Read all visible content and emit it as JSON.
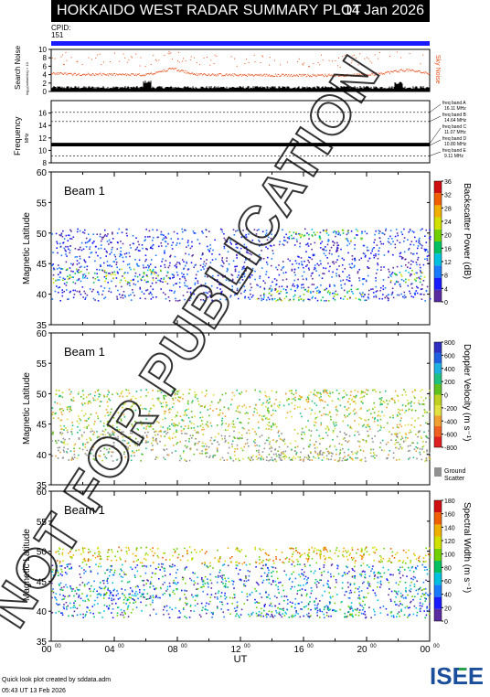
{
  "header": {
    "title": "HOKKAIDO WEST RADAR SUMMARY PLOT",
    "date": "14 Jan 2026"
  },
  "cpid": {
    "label": "CPID:",
    "value": "151"
  },
  "footer": {
    "line1": "Quick look plot created by sddata.adm",
    "line2": "05:43 UT 13 Feb 2026"
  },
  "logo": {
    "text": "ISEE"
  },
  "watermark": "NOT FOR PUBLICATION",
  "x_axis": {
    "label": "UT",
    "ticks": [
      "00",
      "04",
      "08",
      "12",
      "16",
      "20",
      "00"
    ],
    "tick_sup": "00",
    "range": [
      0,
      24
    ]
  },
  "noise_panel": {
    "ylabel": "Search Noise",
    "ylabel2": "log₁₀(noise/cts) × 10",
    "ylim": [
      0,
      10
    ],
    "yticks": [
      "0",
      "2",
      "4",
      "6",
      "8",
      "10"
    ],
    "right_label": "Sky Noise",
    "colors": {
      "search": "#000000",
      "sky": "#e8501c"
    }
  },
  "freq_panel": {
    "ylabel": "Frequency",
    "ylabel_unit": "MHz",
    "ylim": [
      8,
      18
    ],
    "yticks": [
      "8",
      "10",
      "12",
      "14",
      "16"
    ],
    "bands": [
      {
        "name": "freq band A",
        "freq": "16.11 MHz",
        "value": 16.11
      },
      {
        "name": "freq band B",
        "freq": "14.64 MHz",
        "value": 14.64
      },
      {
        "name": "freq band C",
        "freq": "11.07 MHz",
        "value": 11.07
      },
      {
        "name": "freq band D",
        "freq": "10.80 MHz",
        "value": 10.8
      },
      {
        "name": "freq band E",
        "freq": "9.11 MHz",
        "value": 9.11
      }
    ]
  },
  "panels": [
    {
      "beam": "Beam  1",
      "ylabel": "Magnetic Latitude",
      "ylim": [
        35,
        60
      ],
      "yticks": [
        "35",
        "40",
        "45",
        "50",
        "55",
        "60"
      ],
      "cbar_label": "Backscatter Power (dB)",
      "cbar_ticks": [
        "0",
        "4",
        "8",
        "12",
        "16",
        "20",
        "24",
        "28",
        "32",
        "36"
      ],
      "cbar_range": [
        0,
        36
      ],
      "kind": "power"
    },
    {
      "beam": "Beam  1",
      "ylabel": "Magnetic Latitude",
      "ylim": [
        35,
        60
      ],
      "yticks": [
        "35",
        "40",
        "45",
        "50",
        "55",
        "60"
      ],
      "cbar_label": "Doppler Velocity (m s⁻¹)",
      "cbar_ticks": [
        "800",
        "600",
        "400",
        "200",
        "0",
        "-200",
        "-400",
        "-600",
        "-800"
      ],
      "cbar_range": [
        -800,
        800
      ],
      "kind": "velocity",
      "gs_label": "Ground",
      "gs_label2": "Scatter"
    },
    {
      "beam": "Beam  1",
      "ylabel": "Magnetic Latitude",
      "ylim": [
        35,
        60
      ],
      "yticks": [
        "35",
        "40",
        "45",
        "50",
        "55",
        "60"
      ],
      "cbar_label": "Spectral Width (m s⁻¹)",
      "cbar_ticks": [
        "0",
        "20",
        "40",
        "60",
        "80",
        "100",
        "120",
        "140",
        "160",
        "180"
      ],
      "cbar_range": [
        0,
        180
      ],
      "kind": "width"
    }
  ],
  "chart_data": {
    "type": "heatmap",
    "title": "HOKKAIDO WEST RADAR SUMMARY PLOT",
    "xlabel": "UT",
    "xlim": [
      0,
      24
    ],
    "search_noise_level": [
      {
        "t": 0,
        "v": 4.3
      },
      {
        "t": 4,
        "v": 4.1
      },
      {
        "t": 6,
        "v": 4.0
      },
      {
        "t": 7.7,
        "v": 5.6
      },
      {
        "t": 9,
        "v": 4.2
      },
      {
        "t": 12,
        "v": 4.0
      },
      {
        "t": 16,
        "v": 3.9
      },
      {
        "t": 20,
        "v": 4.0
      },
      {
        "t": 22.5,
        "v": 5.2
      },
      {
        "t": 24,
        "v": 4.4
      }
    ],
    "echo_regions": [
      {
        "panel": "all",
        "t0": 0,
        "t1": 24,
        "lat0": 39,
        "lat1": 50.8,
        "note": "scattered returns"
      },
      {
        "panel": "power",
        "t0": 0,
        "t1": 7.5,
        "lat0": 42,
        "lat1": 44,
        "value_db": 10
      },
      {
        "panel": "power",
        "t0": 15,
        "t1": 20,
        "lat0": 49,
        "lat1": 50.8,
        "value_db": 6
      },
      {
        "panel": "power",
        "t0": 13,
        "t1": 20,
        "lat0": 39,
        "lat1": 41,
        "value_db": 14
      }
    ]
  }
}
